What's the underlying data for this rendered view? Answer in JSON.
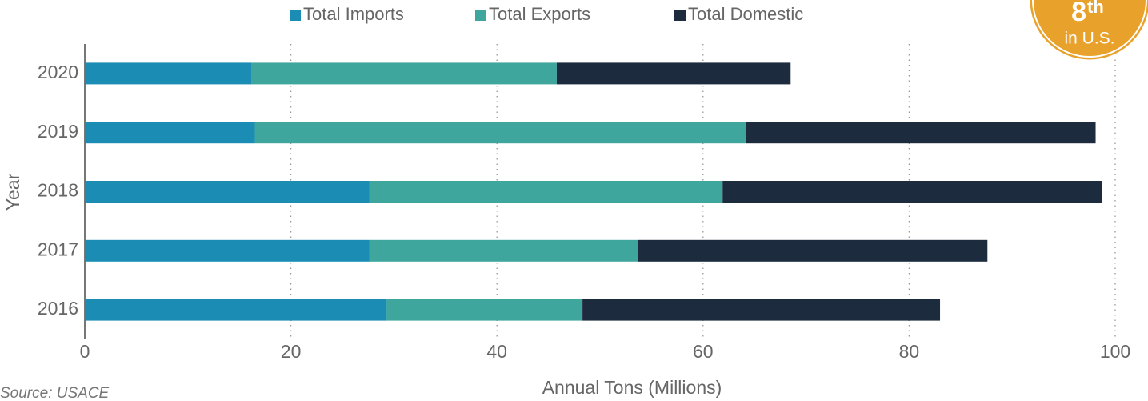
{
  "chart_data": {
    "type": "stacked-barh",
    "categories": [
      "2020",
      "2019",
      "2018",
      "2017",
      "2016"
    ],
    "series": [
      {
        "name": "Total Imports",
        "color": "#1b8db5",
        "values": [
          16.2,
          16.5,
          27.6,
          27.6,
          29.3
        ]
      },
      {
        "name": "Total Exports",
        "color": "#3fa69e",
        "values": [
          29.6,
          47.7,
          34.3,
          26.1,
          19.0
        ]
      },
      {
        "name": "Total Domestic",
        "color": "#1c2b3e",
        "values": [
          22.7,
          33.9,
          36.8,
          33.9,
          34.7
        ]
      }
    ],
    "xlim": [
      0,
      100
    ],
    "xticks": [
      0,
      20,
      40,
      60,
      80,
      100
    ],
    "xlabel": "Annual Tons (Millions)",
    "ylabel": "Year",
    "grid": true,
    "legend": "top",
    "source": "Source: USACE"
  },
  "badge": {
    "rank": "8",
    "suffix": "th",
    "label": "in U.S."
  }
}
